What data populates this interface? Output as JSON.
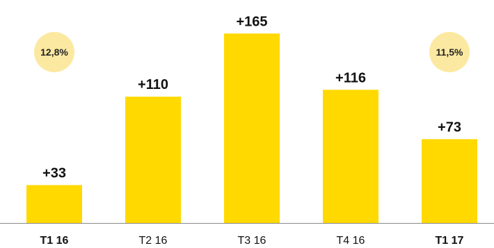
{
  "chart_data": {
    "type": "bar",
    "categories": [
      "T1 16",
      "T2 16",
      "T3 16",
      "T4 16",
      "T1 17"
    ],
    "values": [
      33,
      110,
      165,
      116,
      73
    ],
    "value_labels": [
      "+33",
      "+110",
      "+165",
      "+116",
      "+73"
    ],
    "bold_categories": [
      "T1 16",
      "T1 17"
    ],
    "callouts": [
      {
        "category": "T1 16",
        "text": "12,8%"
      },
      {
        "category": "T1 17",
        "text": "11,5%"
      }
    ],
    "ylim": [
      0,
      170
    ],
    "grid": false,
    "colors": {
      "bar": "#FFD900",
      "bubble": "#FCE9A1",
      "axis": "#888888",
      "text": "#111111"
    }
  }
}
